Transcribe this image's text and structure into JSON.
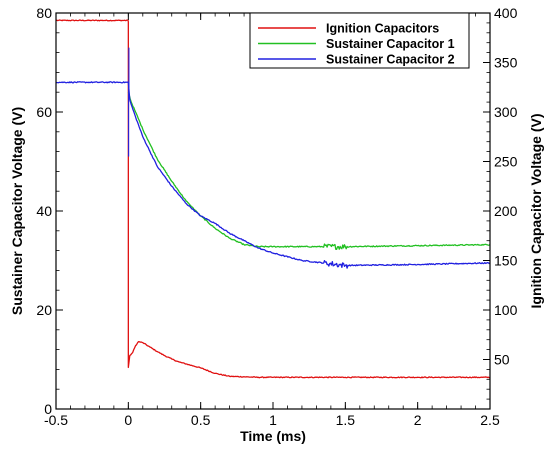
{
  "chart_data": {
    "type": "line",
    "xlabel": "Time (ms)",
    "ylabel_left": "Sustainer Capacitor Voltage (V)",
    "ylabel_right": "Ignition Capacitor Voltage (V)",
    "xlim": [
      -0.5,
      2.5
    ],
    "ylim_left": [
      0,
      80
    ],
    "ylim_right": [
      0,
      400
    ],
    "x_ticks": [
      -0.5,
      0,
      0.5,
      1,
      1.5,
      2,
      2.5
    ],
    "x_tick_labels": [
      "-0.5",
      "0",
      "0.5",
      "1",
      "1.5",
      "2",
      "2.5"
    ],
    "y_ticks_left": [
      0,
      20,
      40,
      60,
      80
    ],
    "y_tick_labels_left": [
      "0",
      "20",
      "40",
      "60",
      "80"
    ],
    "y_ticks_right": [
      50,
      100,
      150,
      200,
      250,
      300,
      350,
      400
    ],
    "y_tick_labels_right": [
      "50",
      "100",
      "150",
      "200",
      "250",
      "300",
      "350",
      "400"
    ],
    "grid": false,
    "legend_position": "top-right",
    "series": [
      {
        "name": "Ignition Capacitors",
        "color": "#e01010",
        "axis": "right",
        "x": [
          -0.5,
          -0.002,
          0.0,
          0.0,
          0.01,
          0.03,
          0.05,
          0.07,
          0.1,
          0.15,
          0.2,
          0.25,
          0.3,
          0.35,
          0.4,
          0.45,
          0.5,
          0.6,
          0.7,
          0.8,
          0.9,
          1.0,
          1.25,
          1.5,
          2.0,
          2.5
        ],
        "y": [
          392.5,
          392.5,
          391.0,
          42.0,
          54.0,
          57.0,
          64.0,
          68.0,
          67.0,
          62.5,
          58.0,
          54.0,
          50.5,
          47.5,
          45.5,
          43.5,
          41.5,
          36.0,
          33.0,
          32.5,
          32.0,
          32.0,
          32.0,
          32.0,
          32.0,
          32.0
        ]
      },
      {
        "name": "Sustainer Capacitor 1",
        "color": "#22c022",
        "axis": "left",
        "x": [
          0.0,
          0.02,
          0.05,
          0.1,
          0.15,
          0.2,
          0.3,
          0.4,
          0.5,
          0.6,
          0.7,
          0.8,
          0.9,
          1.0,
          1.2,
          1.5,
          2.0,
          2.5
        ],
        "y": [
          64.0,
          62.0,
          60.0,
          56.5,
          53.5,
          50.5,
          46.0,
          42.0,
          39.0,
          36.5,
          34.5,
          33.2,
          32.8,
          32.8,
          32.8,
          32.8,
          33.0,
          33.2
        ]
      },
      {
        "name": "Sustainer Capacitor 2",
        "color": "#2020e0",
        "axis": "left",
        "x": [
          -0.5,
          -0.002,
          0.0,
          0.01,
          0.02,
          0.05,
          0.1,
          0.15,
          0.2,
          0.3,
          0.4,
          0.5,
          0.6,
          0.7,
          0.8,
          0.9,
          1.0,
          1.2,
          1.5,
          2.0,
          2.5
        ],
        "y": [
          66.0,
          66.0,
          66.0,
          62.5,
          61.5,
          59.0,
          55.0,
          52.0,
          49.0,
          45.0,
          41.5,
          39.0,
          37.5,
          35.5,
          34.0,
          32.5,
          31.5,
          30.0,
          29.0,
          29.2,
          29.5
        ]
      }
    ]
  }
}
